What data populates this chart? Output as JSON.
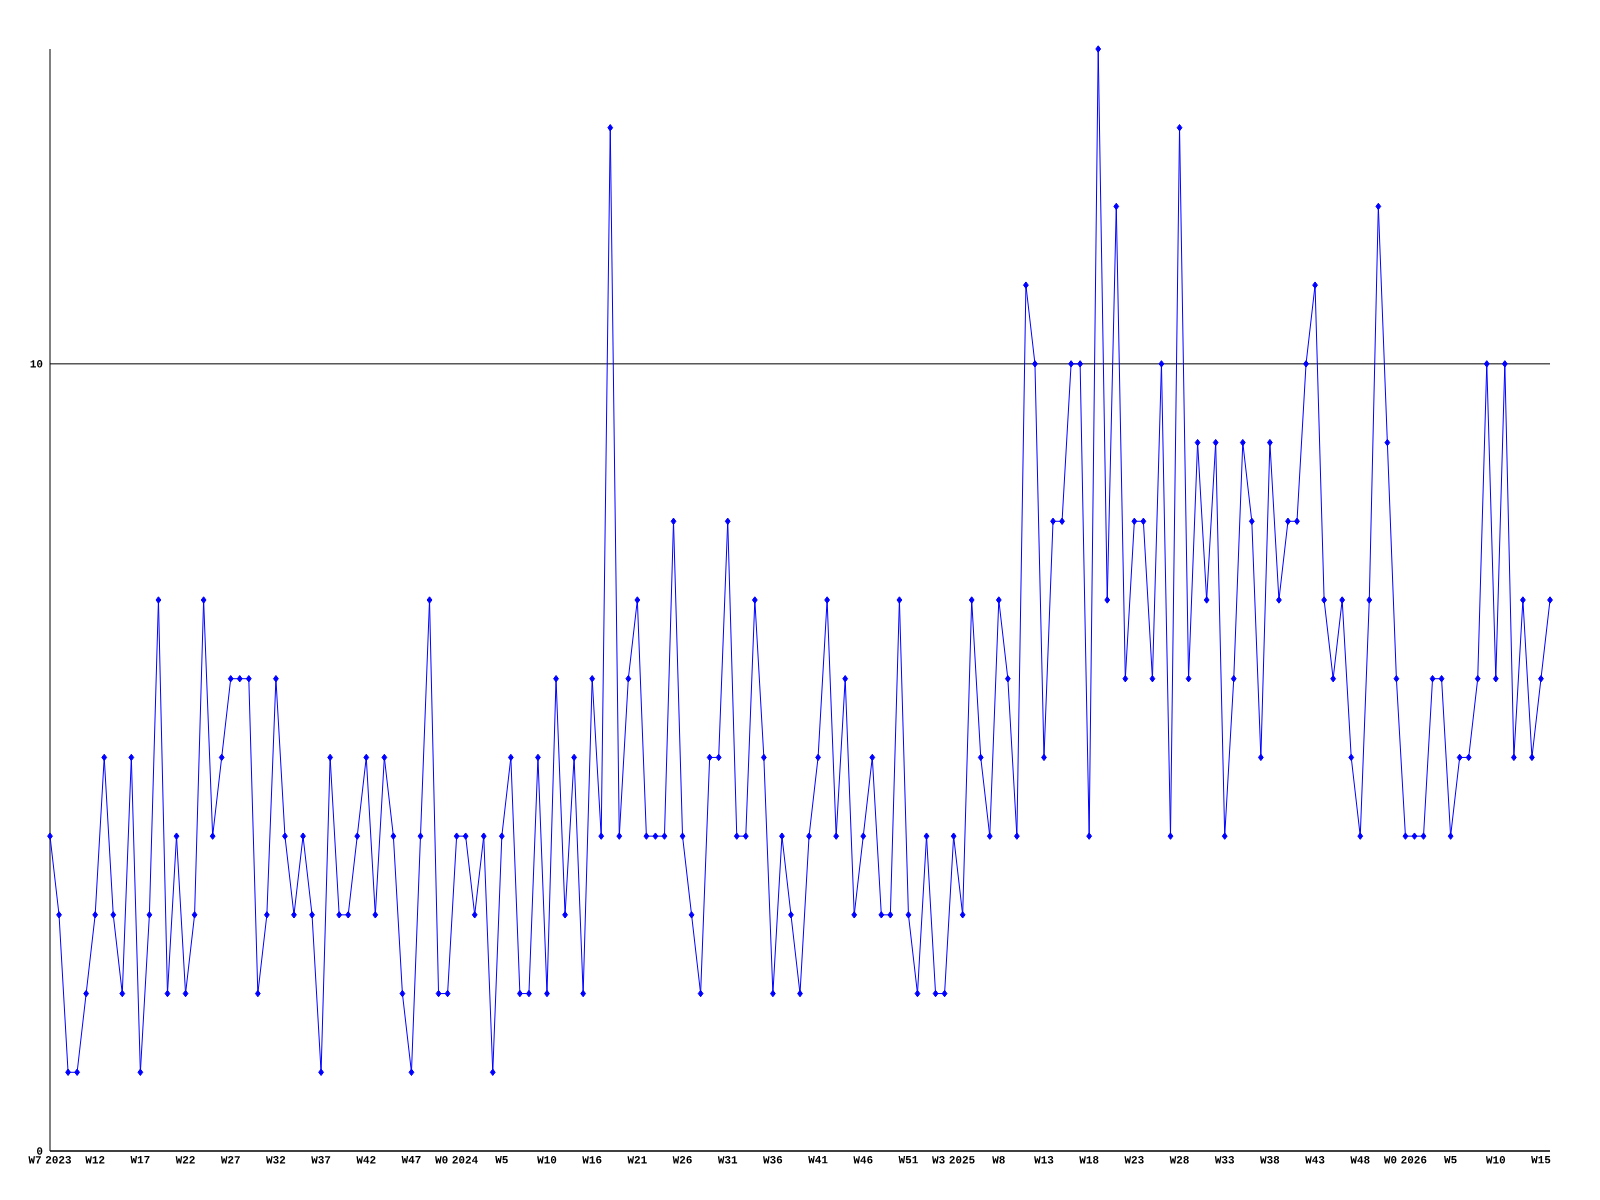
{
  "chart_data": {
    "type": "line",
    "categories": [
      "W7 2023",
      null,
      null,
      null,
      null,
      "W12",
      null,
      null,
      null,
      null,
      "W17",
      null,
      null,
      null,
      null,
      "W22",
      null,
      null,
      null,
      null,
      "W27",
      null,
      null,
      null,
      null,
      "W32",
      null,
      null,
      null,
      null,
      "W37",
      null,
      null,
      null,
      null,
      "W42",
      null,
      null,
      null,
      null,
      "W47",
      null,
      null,
      null,
      null,
      "W0 2024",
      null,
      null,
      null,
      null,
      "W5",
      null,
      null,
      null,
      null,
      "W10",
      null,
      null,
      null,
      null,
      "W16",
      null,
      null,
      null,
      null,
      "W21",
      null,
      null,
      null,
      null,
      "W26",
      null,
      null,
      null,
      null,
      "W31",
      null,
      null,
      null,
      null,
      "W36",
      null,
      null,
      null,
      null,
      "W41",
      null,
      null,
      null,
      null,
      "W46",
      null,
      null,
      null,
      null,
      "W51",
      null,
      null,
      null,
      null,
      "W3 2025",
      null,
      null,
      null,
      null,
      "W8",
      null,
      null,
      null,
      null,
      "W13",
      null,
      null,
      null,
      null,
      "W18",
      null,
      null,
      null,
      null,
      "W23",
      null,
      null,
      null,
      null,
      "W28",
      null,
      null,
      null,
      null,
      "W33",
      null,
      null,
      null,
      null,
      "W38",
      null,
      null,
      null,
      null,
      "W43",
      null,
      null,
      null,
      null,
      "W48",
      null,
      null,
      null,
      null,
      "W0 2026",
      null,
      null,
      null,
      null,
      "W5",
      null,
      null,
      null,
      null,
      "W10",
      null,
      null,
      null,
      null,
      "W15",
      null
    ],
    "values": [
      4,
      3,
      1,
      1,
      2,
      3,
      5,
      3,
      2,
      5,
      1,
      3,
      7,
      2,
      4,
      2,
      3,
      7,
      4,
      5,
      6,
      6,
      6,
      2,
      3,
      6,
      4,
      3,
      4,
      3,
      1,
      5,
      3,
      3,
      4,
      5,
      3,
      5,
      4,
      2,
      1,
      4,
      7,
      2,
      2,
      4,
      4,
      3,
      4,
      1,
      4,
      5,
      2,
      2,
      5,
      2,
      6,
      3,
      5,
      2,
      6,
      4,
      13,
      4,
      6,
      7,
      4,
      4,
      4,
      8,
      4,
      3,
      2,
      5,
      5,
      8,
      4,
      4,
      7,
      5,
      2,
      4,
      3,
      2,
      4,
      5,
      7,
      4,
      6,
      3,
      4,
      5,
      3,
      3,
      7,
      3,
      2,
      4,
      2,
      2,
      4,
      3,
      7,
      5,
      4,
      7,
      6,
      4,
      11,
      10,
      5,
      8,
      8,
      10,
      10,
      4,
      14,
      7,
      12,
      6,
      8,
      8,
      6,
      10,
      4,
      13,
      6,
      9,
      7,
      9,
      4,
      6,
      9,
      8,
      5,
      9,
      7,
      8,
      8,
      10,
      11,
      7,
      6,
      7,
      5,
      4,
      7,
      12,
      9,
      6,
      4,
      4,
      4,
      6,
      6,
      4,
      5,
      5,
      6,
      10,
      6,
      10,
      5,
      7,
      5,
      6,
      7
    ],
    "color": "#0000ff",
    "ylim": [
      0,
      14
    ],
    "yticks": [
      0,
      10
    ],
    "grid": "y",
    "marker": "diamond",
    "line_style": "solid"
  }
}
